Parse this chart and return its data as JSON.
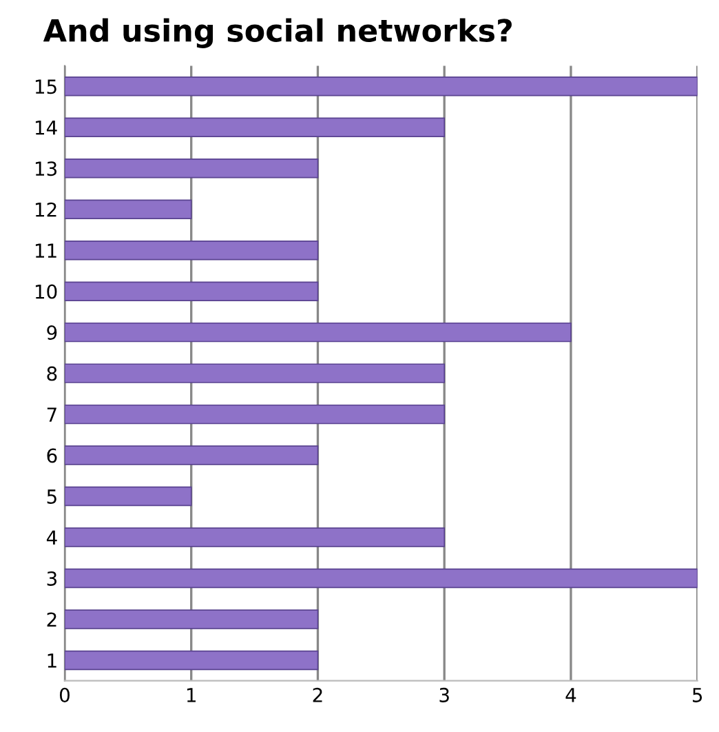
{
  "chart_data": {
    "type": "bar",
    "orientation": "horizontal",
    "title": "And using social networks?",
    "categories": [
      "15",
      "14",
      "13",
      "12",
      "11",
      "10",
      "9",
      "8",
      "7",
      "6",
      "5",
      "4",
      "3",
      "2",
      "1"
    ],
    "values": [
      5,
      3,
      2,
      1,
      2,
      2,
      4,
      3,
      3,
      2,
      1,
      3,
      5,
      2,
      2
    ],
    "color": "#8e72c8",
    "xlim": [
      0,
      5
    ],
    "xticks": [
      0,
      1,
      2,
      3,
      4,
      5
    ],
    "grid": "x"
  }
}
